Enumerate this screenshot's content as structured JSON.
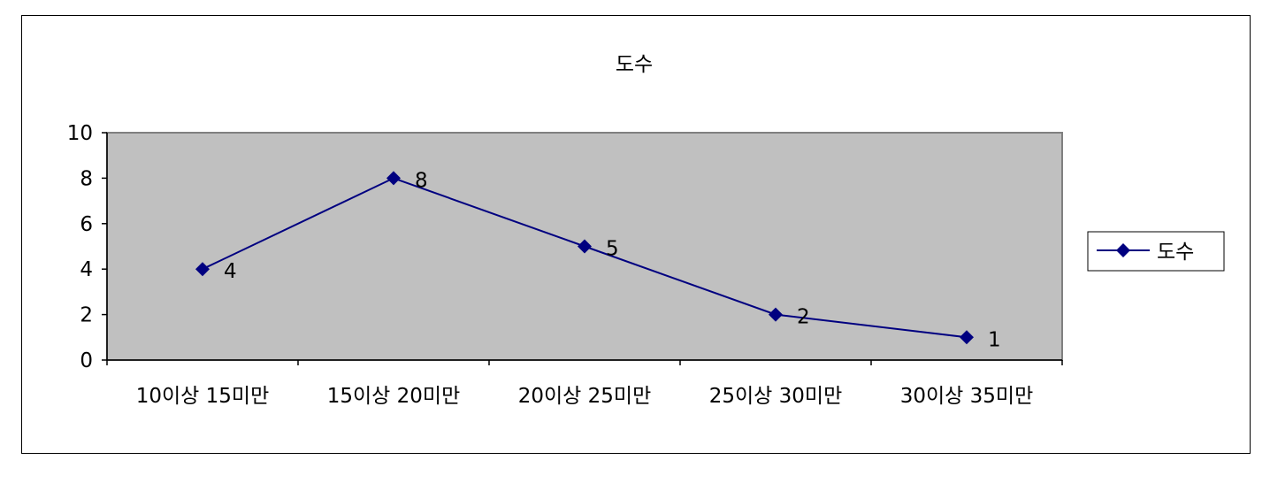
{
  "chart_data": {
    "type": "line",
    "title": "도수",
    "categories": [
      "10이상 15미만",
      "15이상 20미만",
      "20이상 25미만",
      "25이상 30미만",
      "30이상 35미만"
    ],
    "series": [
      {
        "name": "도수",
        "values": [
          4,
          8,
          5,
          2,
          1
        ],
        "color": "#000080"
      }
    ],
    "data_labels": [
      "4",
      "8",
      "5",
      "2",
      "1"
    ],
    "ylim": [
      0,
      10
    ],
    "yticks": [
      0,
      2,
      4,
      6,
      8,
      10
    ],
    "ytick_labels": [
      "0",
      "2",
      "4",
      "6",
      "8",
      "10"
    ],
    "xlabel": "",
    "ylabel": "",
    "plot_background": "#c0c0c0",
    "grid": false,
    "legend": {
      "position": "right",
      "label": "도수"
    },
    "marker": "diamond"
  }
}
